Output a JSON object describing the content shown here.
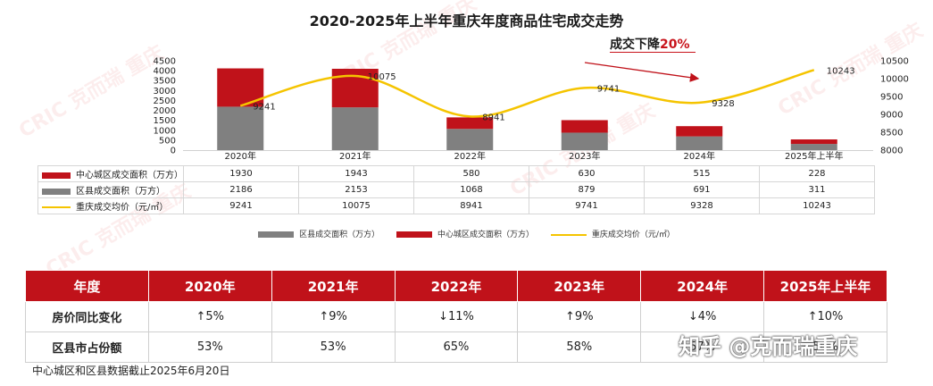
{
  "title": "2020-2025年上半年重庆年度商品住宅成交走势",
  "subtitle_prefix": "成交下降",
  "subtitle_pct": "20%",
  "watermark": "CRIC 克而瑞 重庆",
  "chart_data": {
    "type": "bar",
    "stacked": true,
    "categories": [
      "2020年",
      "2021年",
      "2022年",
      "2023年",
      "2024年",
      "2025年上半年"
    ],
    "series": [
      {
        "name": "区县成交面积（万方）",
        "kind": "bar",
        "color": "#808080",
        "values": [
          2186,
          2153,
          1068,
          879,
          691,
          311
        ]
      },
      {
        "name": "中心城区成交面积（万方）",
        "kind": "bar",
        "color": "#c0121a",
        "values": [
          1930,
          1943,
          580,
          630,
          515,
          228
        ]
      },
      {
        "name": "重庆成交均价（元/㎡）",
        "kind": "line",
        "axis": "right",
        "color": "#f5c400",
        "values": [
          9241,
          10075,
          8941,
          9741,
          9328,
          10243
        ]
      }
    ],
    "ylim_left": [
      0,
      4500
    ],
    "yticks_left": [
      0,
      500,
      1000,
      1500,
      2000,
      2500,
      3000,
      3500,
      4000,
      4500
    ],
    "ylim_right": [
      8000,
      10500
    ],
    "yticks_right": [
      8000,
      8500,
      9000,
      9500,
      10000,
      10500
    ],
    "grid": false,
    "legend_position": "bottom"
  },
  "data_table": {
    "rows": [
      {
        "label": "中心城区成交面积（万方）",
        "values": [
          "1930",
          "1943",
          "580",
          "630",
          "515",
          "228"
        ]
      },
      {
        "label": "区县成交面积（万方）",
        "values": [
          "2186",
          "2153",
          "1068",
          "879",
          "691",
          "311"
        ]
      },
      {
        "label": "重庆成交均价（元/㎡）",
        "values": [
          "9241",
          "10075",
          "8941",
          "9741",
          "9328",
          "10243"
        ]
      }
    ]
  },
  "legend": {
    "items": [
      "区县成交面积（万方）",
      "中心城区成交面积（万方）",
      "重庆成交均价（元/㎡）"
    ]
  },
  "bottom_table": {
    "header": [
      "年度",
      "2020年",
      "2021年",
      "2022年",
      "2023年",
      "2024年",
      "2025年上半年"
    ],
    "row1_label": "房价同比变化",
    "row1": [
      {
        "text": "↑5%",
        "dir": "up"
      },
      {
        "text": "↑9%",
        "dir": "up"
      },
      {
        "text": "↓11%",
        "dir": "down"
      },
      {
        "text": "↑9%",
        "dir": "up"
      },
      {
        "text": "↓4%",
        "dir": "down"
      },
      {
        "text": "↑10%",
        "dir": "up"
      }
    ],
    "row2_label": "区县市占份额",
    "row2": [
      "53%",
      "53%",
      "65%",
      "58%",
      "57%",
      "58%"
    ]
  },
  "note": "中心城区和区县数据截止2025年6月20日",
  "overlay_watermark": "知乎 @克而瑞重庆",
  "colors": {
    "red": "#c0121a",
    "gray": "#808080",
    "yellow": "#f5c400",
    "up": "#d01c1c",
    "down": "#1aa33a"
  }
}
